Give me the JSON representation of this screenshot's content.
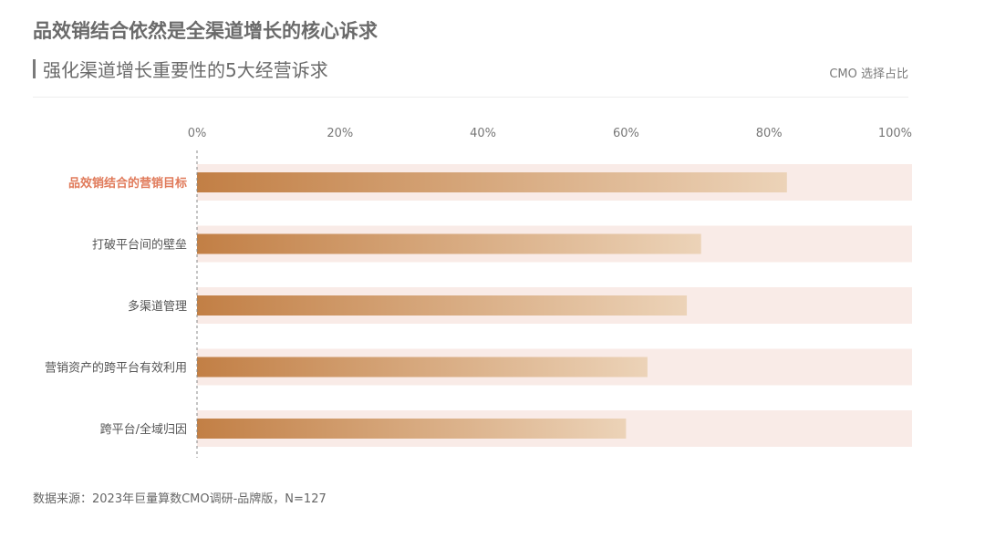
{
  "header": {
    "title": "品效销结合依然是全渠道增长的核心诉求",
    "subtitle": "强化渠道增长重要性的5大经营诉求",
    "legend_note": "CMO 选择占比"
  },
  "footer": {
    "source": "数据来源：2023年巨量算数CMO调研-品牌版，N=127"
  },
  "colors": {
    "bar_start": "#c27f45",
    "bar_end": "#ecd3b8",
    "track": "#f9ebe7",
    "highlight_label": "#e07a5a",
    "label": "#555555",
    "axis_tick": "#777777"
  },
  "chart_data": {
    "type": "bar",
    "orientation": "horizontal",
    "categories": [
      "品效销结合的营销目标",
      "打破平台间的壁垒",
      "多渠道管理",
      "营销资产的跨平台有效利用",
      "跨平台/全域归因"
    ],
    "values": [
      82.5,
      70.5,
      68.5,
      63,
      60
    ],
    "x_ticks": [
      "0%",
      "20%",
      "40%",
      "60%",
      "80%",
      "100%"
    ],
    "xlim": [
      0,
      100
    ],
    "highlight_index": 0,
    "grid": false
  }
}
